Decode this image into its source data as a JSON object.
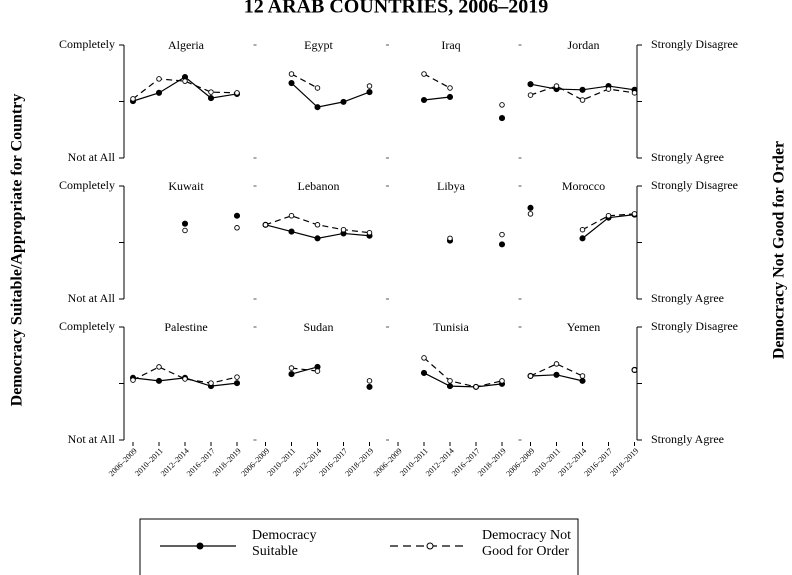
{
  "title": "12 ARAB COUNTRIES, 2006–2019",
  "y_label": "Democracy Suitable/Appropriate for Country",
  "y2_label": "Democracy Not Good for Order",
  "chart_data": [
    {
      "type": "line",
      "title": "Algeria",
      "categories": [
        "2006–2009",
        "2010–2011",
        "2012–2014",
        "2016–2017",
        "2018–2019"
      ],
      "ylim": [
        1,
        4
      ],
      "yticks": [
        {
          "value": 1,
          "label": "Not at All"
        },
        {
          "value": 2.5,
          "label": null
        },
        {
          "value": 4,
          "label": "Completely"
        }
      ],
      "y2lim": [
        1,
        4
      ],
      "y2ticks": [
        {
          "value": 1,
          "label": "Strongly Agree"
        },
        {
          "value": 2.5,
          "label": null
        },
        {
          "value": 4,
          "label": "Strongly Disagree"
        }
      ],
      "series": [
        {
          "name": "Democracy Suitable",
          "color": "#000000",
          "line_style": "solid",
          "marker": "filled",
          "values": [
            2.51,
            2.73,
            3.15,
            2.59,
            2.7
          ]
        },
        {
          "name": "Democracy Not Good for Order",
          "color": "#000000",
          "line_style": "dashed",
          "marker": "hollow",
          "axis": "y2",
          "values": [
            2.57,
            3.1,
            3.04,
            2.75,
            2.73
          ]
        }
      ]
    },
    {
      "type": "line",
      "title": "Egypt",
      "categories": [
        "2006–2009",
        "2010–2011",
        "2012–2014",
        "2016–2017",
        "2018–2019"
      ],
      "ylim": [
        1,
        4
      ],
      "yticks": [
        {
          "value": 1,
          "label": "Not at All"
        },
        {
          "value": 2.5,
          "label": null
        },
        {
          "value": 4,
          "label": "Completely"
        }
      ],
      "y2lim": [
        1,
        4
      ],
      "y2ticks": [
        {
          "value": 1,
          "label": "Strongly Agree"
        },
        {
          "value": 2.5,
          "label": null
        },
        {
          "value": 4,
          "label": "Strongly Disagree"
        }
      ],
      "series": [
        {
          "name": "Democracy Suitable",
          "color": "#000000",
          "line_style": "solid",
          "marker": "filled",
          "values": [
            null,
            2.99,
            2.35,
            2.49,
            2.75
          ]
        },
        {
          "name": "Democracy Not Good for Order",
          "color": "#000000",
          "line_style": "dashed",
          "marker": "hollow",
          "axis": "y2",
          "values": [
            null,
            3.23,
            2.86,
            null,
            2.91
          ]
        }
      ]
    },
    {
      "type": "line",
      "title": "Iraq",
      "categories": [
        "2006–2009",
        "2010–2011",
        "2012–2014",
        "2016–2017",
        "2018–2019"
      ],
      "ylim": [
        1,
        4
      ],
      "yticks": [
        {
          "value": 1,
          "label": "Not at All"
        },
        {
          "value": 2.5,
          "label": null
        },
        {
          "value": 4,
          "label": "Completely"
        }
      ],
      "y2lim": [
        1,
        4
      ],
      "y2ticks": [
        {
          "value": 1,
          "label": "Strongly Agree"
        },
        {
          "value": 2.5,
          "label": null
        },
        {
          "value": 4,
          "label": "Strongly Disagree"
        }
      ],
      "series": [
        {
          "name": "Democracy Suitable",
          "color": "#000000",
          "line_style": "solid",
          "marker": "filled",
          "values": [
            null,
            2.54,
            2.62,
            null,
            2.06
          ]
        },
        {
          "name": "Democracy Not Good for Order",
          "color": "#000000",
          "line_style": "dashed",
          "marker": "hollow",
          "axis": "y2",
          "values": [
            null,
            3.23,
            2.86,
            null,
            2.41
          ]
        }
      ]
    },
    {
      "type": "line",
      "title": "Jordan",
      "categories": [
        "2006–2009",
        "2010–2011",
        "2012–2014",
        "2016–2017",
        "2018–2019"
      ],
      "ylim": [
        1,
        4
      ],
      "yticks": [
        {
          "value": 1,
          "label": "Not at All"
        },
        {
          "value": 2.5,
          "label": null
        },
        {
          "value": 4,
          "label": "Completely"
        }
      ],
      "y2lim": [
        1,
        4
      ],
      "y2ticks": [
        {
          "value": 1,
          "label": "Strongly Agree"
        },
        {
          "value": 2.5,
          "label": null
        },
        {
          "value": 4,
          "label": "Strongly Disagree"
        }
      ],
      "series": [
        {
          "name": "Democracy Suitable",
          "color": "#000000",
          "line_style": "solid",
          "marker": "filled",
          "values": [
            2.96,
            2.83,
            2.81,
            2.91,
            2.81
          ]
        },
        {
          "name": "Democracy Not Good for Order",
          "color": "#000000",
          "line_style": "dashed",
          "marker": "hollow",
          "axis": "y2",
          "values": [
            2.67,
            2.91,
            2.54,
            2.83,
            2.73
          ]
        }
      ]
    },
    {
      "type": "line",
      "title": "Kuwait",
      "categories": [
        "2006–2009",
        "2010–2011",
        "2012–2014",
        "2016–2017",
        "2018–2019"
      ],
      "ylim": [
        1,
        4
      ],
      "yticks": [
        {
          "value": 1,
          "label": "Not at All"
        },
        {
          "value": 2.5,
          "label": null
        },
        {
          "value": 4,
          "label": "Completely"
        }
      ],
      "y2lim": [
        1,
        4
      ],
      "y2ticks": [
        {
          "value": 1,
          "label": "Strongly Agree"
        },
        {
          "value": 2.5,
          "label": null
        },
        {
          "value": 4,
          "label": "Strongly Disagree"
        }
      ],
      "series": [
        {
          "name": "Democracy Suitable",
          "color": "#000000",
          "line_style": "solid",
          "marker": "filled",
          "values": [
            null,
            null,
            3.0,
            null,
            3.21
          ]
        },
        {
          "name": "Democracy Not Good for Order",
          "color": "#000000",
          "line_style": "dashed",
          "marker": "hollow",
          "axis": "y2",
          "values": [
            null,
            null,
            2.82,
            null,
            2.89
          ]
        }
      ]
    },
    {
      "type": "line",
      "title": "Lebanon",
      "categories": [
        "2006–2009",
        "2010–2011",
        "2012–2014",
        "2016–2017",
        "2018–2019"
      ],
      "ylim": [
        1,
        4
      ],
      "yticks": [
        {
          "value": 1,
          "label": "Not at All"
        },
        {
          "value": 2.5,
          "label": null
        },
        {
          "value": 4,
          "label": "Completely"
        }
      ],
      "y2lim": [
        1,
        4
      ],
      "y2ticks": [
        {
          "value": 1,
          "label": "Strongly Agree"
        },
        {
          "value": 2.5,
          "label": null
        },
        {
          "value": 4,
          "label": "Strongly Disagree"
        }
      ],
      "series": [
        {
          "name": "Democracy Suitable",
          "color": "#000000",
          "line_style": "solid",
          "marker": "filled",
          "values": [
            2.97,
            2.79,
            2.61,
            2.74,
            2.68
          ]
        },
        {
          "name": "Democracy Not Good for Order",
          "color": "#000000",
          "line_style": "dashed",
          "marker": "hollow",
          "axis": "y2",
          "values": [
            2.97,
            3.21,
            2.97,
            2.84,
            2.76
          ]
        }
      ]
    },
    {
      "type": "line",
      "title": "Libya",
      "categories": [
        "2006–2009",
        "2010–2011",
        "2012–2014",
        "2016–2017",
        "2018–2019"
      ],
      "ylim": [
        1,
        4
      ],
      "yticks": [
        {
          "value": 1,
          "label": "Not at All"
        },
        {
          "value": 2.5,
          "label": null
        },
        {
          "value": 4,
          "label": "Completely"
        }
      ],
      "y2lim": [
        1,
        4
      ],
      "y2ticks": [
        {
          "value": 1,
          "label": "Strongly Agree"
        },
        {
          "value": 2.5,
          "label": null
        },
        {
          "value": 4,
          "label": "Strongly Disagree"
        }
      ],
      "series": [
        {
          "name": "Democracy Suitable",
          "color": "#000000",
          "line_style": "solid",
          "marker": "filled",
          "values": [
            null,
            null,
            2.55,
            null,
            2.45
          ]
        },
        {
          "name": "Democracy Not Good for Order",
          "color": "#000000",
          "line_style": "dashed",
          "marker": "hollow",
          "axis": "y2",
          "values": [
            null,
            null,
            2.61,
            null,
            2.71
          ]
        }
      ]
    },
    {
      "type": "line",
      "title": "Morocco",
      "categories": [
        "2006–2009",
        "2010–2011",
        "2012–2014",
        "2016–2017",
        "2018–2019"
      ],
      "ylim": [
        1,
        4
      ],
      "yticks": [
        {
          "value": 1,
          "label": "Not at All"
        },
        {
          "value": 2.5,
          "label": null
        },
        {
          "value": 4,
          "label": "Completely"
        }
      ],
      "y2lim": [
        1,
        4
      ],
      "y2ticks": [
        {
          "value": 1,
          "label": "Strongly Agree"
        },
        {
          "value": 2.5,
          "label": null
        },
        {
          "value": 4,
          "label": "Strongly Disagree"
        }
      ],
      "series": [
        {
          "name": "Democracy Suitable",
          "color": "#000000",
          "line_style": "solid",
          "marker": "filled",
          "values": [
            3.42,
            null,
            2.61,
            3.16,
            3.24
          ]
        },
        {
          "name": "Democracy Not Good for Order",
          "color": "#000000",
          "line_style": "dashed",
          "marker": "hollow",
          "axis": "y2",
          "values": [
            3.26,
            null,
            2.84,
            3.21,
            3.26
          ]
        }
      ]
    },
    {
      "type": "line",
      "title": "Palestine",
      "categories": [
        "2006–2009",
        "2010–2011",
        "2012–2014",
        "2016–2017",
        "2018–2019"
      ],
      "ylim": [
        1,
        4
      ],
      "yticks": [
        {
          "value": 1,
          "label": "Not at All"
        },
        {
          "value": 2.5,
          "label": null
        },
        {
          "value": 4,
          "label": "Completely"
        }
      ],
      "y2lim": [
        1,
        4
      ],
      "y2ticks": [
        {
          "value": 1,
          "label": "Strongly Agree"
        },
        {
          "value": 2.5,
          "label": null
        },
        {
          "value": 4,
          "label": "Strongly Disagree"
        }
      ],
      "series": [
        {
          "name": "Democracy Suitable",
          "color": "#000000",
          "line_style": "solid",
          "marker": "filled",
          "values": [
            2.65,
            2.57,
            2.65,
            2.43,
            2.51
          ]
        },
        {
          "name": "Democracy Not Good for Order",
          "color": "#000000",
          "line_style": "dashed",
          "marker": "hollow",
          "axis": "y2",
          "values": [
            2.59,
            2.94,
            2.62,
            2.51,
            2.67
          ]
        }
      ]
    },
    {
      "type": "line",
      "title": "Sudan",
      "categories": [
        "2006–2009",
        "2010–2011",
        "2012–2014",
        "2016–2017",
        "2018–2019"
      ],
      "ylim": [
        1,
        4
      ],
      "yticks": [
        {
          "value": 1,
          "label": "Not at All"
        },
        {
          "value": 2.5,
          "label": null
        },
        {
          "value": 4,
          "label": "Completely"
        }
      ],
      "y2lim": [
        1,
        4
      ],
      "y2ticks": [
        {
          "value": 1,
          "label": "Strongly Agree"
        },
        {
          "value": 2.5,
          "label": null
        },
        {
          "value": 4,
          "label": "Strongly Disagree"
        }
      ],
      "series": [
        {
          "name": "Democracy Suitable",
          "color": "#000000",
          "line_style": "solid",
          "marker": "filled",
          "values": [
            null,
            2.75,
            2.94,
            null,
            2.41
          ]
        },
        {
          "name": "Democracy Not Good for Order",
          "color": "#000000",
          "line_style": "dashed",
          "marker": "hollow",
          "axis": "y2",
          "values": [
            null,
            2.91,
            2.83,
            null,
            2.57
          ]
        }
      ]
    },
    {
      "type": "line",
      "title": "Tunisia",
      "categories": [
        "2006–2009",
        "2010–2011",
        "2012–2014",
        "2016–2017",
        "2018–2019"
      ],
      "ylim": [
        1,
        4
      ],
      "yticks": [
        {
          "value": 1,
          "label": "Not at All"
        },
        {
          "value": 2.5,
          "label": null
        },
        {
          "value": 4,
          "label": "Completely"
        }
      ],
      "y2lim": [
        1,
        4
      ],
      "y2ticks": [
        {
          "value": 1,
          "label": "Strongly Agree"
        },
        {
          "value": 2.5,
          "label": null
        },
        {
          "value": 4,
          "label": "Strongly Disagree"
        }
      ],
      "series": [
        {
          "name": "Democracy Suitable",
          "color": "#000000",
          "line_style": "solid",
          "marker": "filled",
          "values": [
            null,
            2.78,
            2.43,
            2.41,
            2.49
          ]
        },
        {
          "name": "Democracy Not Good for Order",
          "color": "#000000",
          "line_style": "dashed",
          "marker": "hollow",
          "axis": "y2",
          "values": [
            null,
            3.18,
            2.57,
            2.41,
            2.57
          ]
        }
      ]
    },
    {
      "type": "line",
      "title": "Yemen",
      "categories": [
        "2006–2009",
        "2010–2011",
        "2012–2014",
        "2016–2017",
        "2018–2019"
      ],
      "ylim": [
        1,
        4
      ],
      "yticks": [
        {
          "value": 1,
          "label": "Not at All"
        },
        {
          "value": 2.5,
          "label": null
        },
        {
          "value": 4,
          "label": "Completely"
        }
      ],
      "y2lim": [
        1,
        4
      ],
      "y2ticks": [
        {
          "value": 1,
          "label": "Strongly Agree"
        },
        {
          "value": 2.5,
          "label": null
        },
        {
          "value": 4,
          "label": "Strongly Disagree"
        }
      ],
      "series": [
        {
          "name": "Democracy Suitable",
          "color": "#000000",
          "line_style": "solid",
          "marker": "filled",
          "values": [
            2.7,
            2.73,
            2.57,
            null,
            2.86
          ]
        },
        {
          "name": "Democracy Not Good for Order",
          "color": "#000000",
          "line_style": "dashed",
          "marker": "hollow",
          "axis": "y2",
          "values": [
            2.7,
            3.02,
            2.7,
            null,
            2.86
          ]
        }
      ]
    }
  ]
}
